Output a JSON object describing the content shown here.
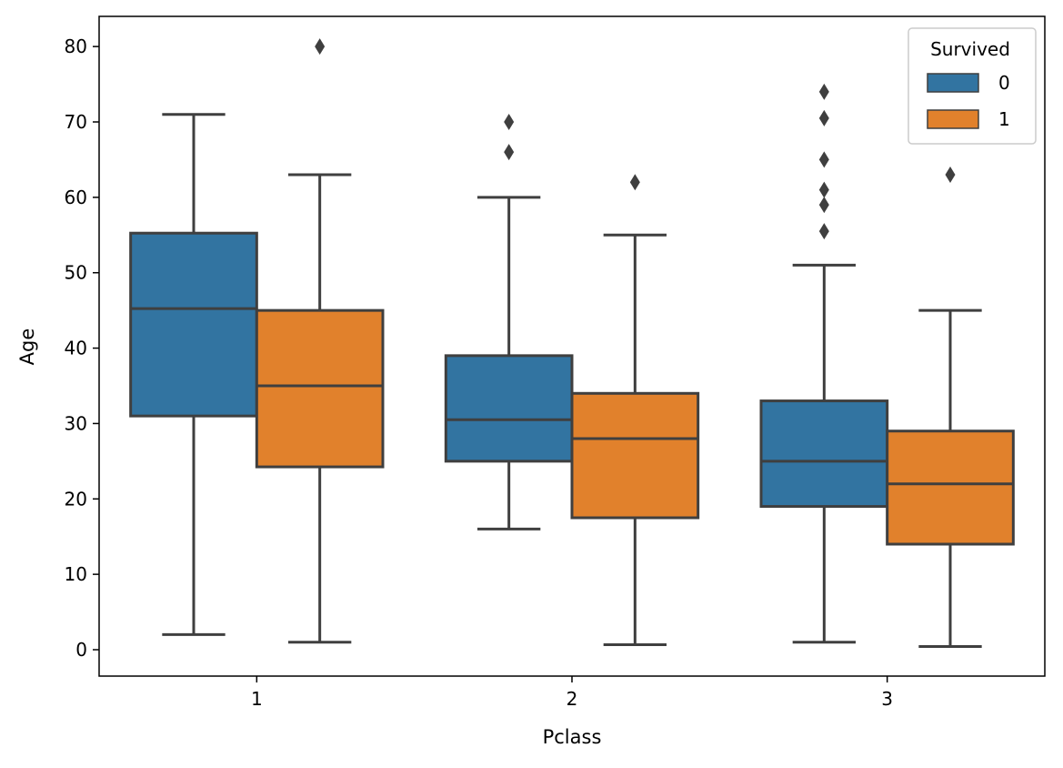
{
  "chart_data": {
    "type": "boxplot",
    "xlabel": "Pclass",
    "ylabel": "Age",
    "categories": [
      "1",
      "2",
      "3"
    ],
    "ylim": [
      -3.5,
      84
    ],
    "yticks": [
      0,
      10,
      20,
      30,
      40,
      50,
      60,
      70,
      80
    ],
    "grid": false,
    "legend": {
      "title": "Survived",
      "placement": "top-right",
      "entries": [
        {
          "label": "0",
          "color": "#3274a1"
        },
        {
          "label": "1",
          "color": "#e1812c"
        }
      ]
    },
    "series": [
      {
        "name": "0",
        "color": "#3274a1",
        "boxes": [
          {
            "category": "1",
            "whisker_low": 2,
            "q1": 31,
            "median": 45.25,
            "q3": 55.25,
            "whisker_high": 71,
            "outliers": []
          },
          {
            "category": "2",
            "whisker_low": 16,
            "q1": 25,
            "median": 30.5,
            "q3": 39,
            "whisker_high": 60,
            "outliers": [
              66,
              70
            ]
          },
          {
            "category": "3",
            "whisker_low": 1,
            "q1": 19,
            "median": 25,
            "q3": 33,
            "whisker_high": 51,
            "outliers": [
              55.5,
              59,
              61,
              65,
              70.5,
              74
            ]
          }
        ]
      },
      {
        "name": "1",
        "color": "#e1812c",
        "boxes": [
          {
            "category": "1",
            "whisker_low": 1,
            "q1": 24.25,
            "median": 35,
            "q3": 45,
            "whisker_high": 63,
            "outliers": [
              80
            ]
          },
          {
            "category": "2",
            "whisker_low": 0.67,
            "q1": 17.5,
            "median": 28,
            "q3": 34,
            "whisker_high": 55,
            "outliers": [
              62
            ]
          },
          {
            "category": "3",
            "whisker_low": 0.42,
            "q1": 14,
            "median": 22,
            "q3": 29,
            "whisker_high": 45,
            "outliers": [
              63
            ]
          }
        ]
      }
    ]
  }
}
